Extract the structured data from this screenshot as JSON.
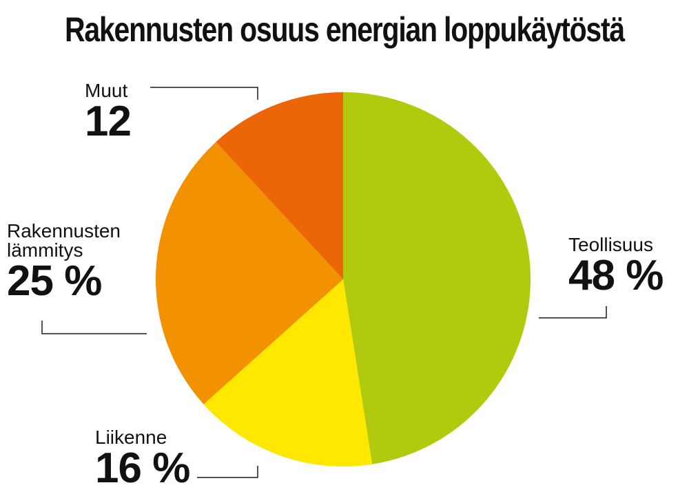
{
  "chart_data": {
    "type": "pie",
    "title": "Rakennusten osuus energian loppukäytöstä",
    "slices": [
      {
        "name": "Teollisuus",
        "value": 48,
        "value_label": "48 %",
        "color": "#b2ca0d"
      },
      {
        "name": "Liikenne",
        "value": 16,
        "value_label": "16 %",
        "color": "#ffe800"
      },
      {
        "name": "Rakennusten lämmitys",
        "name_lines": [
          "Rakennusten",
          "lämmitys"
        ],
        "value": 25,
        "value_label": "25 %",
        "color": "#f29200"
      },
      {
        "name": "Muut",
        "value": 12,
        "value_label": "12",
        "color": "#ec6608"
      }
    ],
    "start": "top",
    "direction": "clockwise"
  }
}
